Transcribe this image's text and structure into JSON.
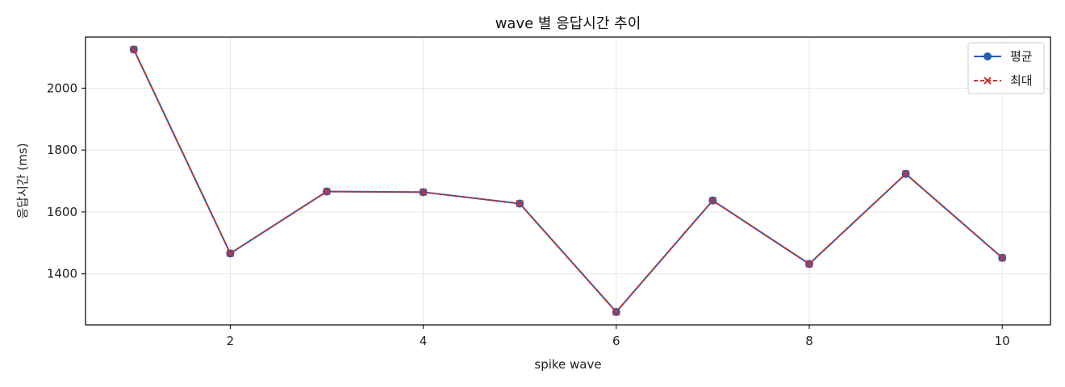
{
  "chart_data": {
    "type": "line",
    "title": "wave 별 응답시간 추이",
    "xlabel": "spike wave",
    "ylabel": "응답시간 (ms)",
    "x": [
      1,
      2,
      3,
      4,
      5,
      6,
      7,
      8,
      9,
      10
    ],
    "xlim": [
      0.5,
      10.5
    ],
    "ylim": [
      1235,
      2165
    ],
    "xticks": [
      2,
      4,
      6,
      8,
      10
    ],
    "yticks": [
      1400,
      1600,
      1800,
      2000
    ],
    "grid": true,
    "legend_position": "top-right",
    "series": [
      {
        "name": "평균",
        "values": [
          2125,
          1466,
          1666,
          1664,
          1627,
          1277,
          1637,
          1432,
          1723,
          1452
        ],
        "color": "#1f5fb4",
        "marker": "circle",
        "line_style": "solid"
      },
      {
        "name": "최대",
        "values": [
          2125,
          1466,
          1666,
          1664,
          1627,
          1277,
          1637,
          1432,
          1723,
          1452
        ],
        "color": "#cc3333",
        "marker": "x",
        "line_style": "dashed"
      }
    ]
  }
}
